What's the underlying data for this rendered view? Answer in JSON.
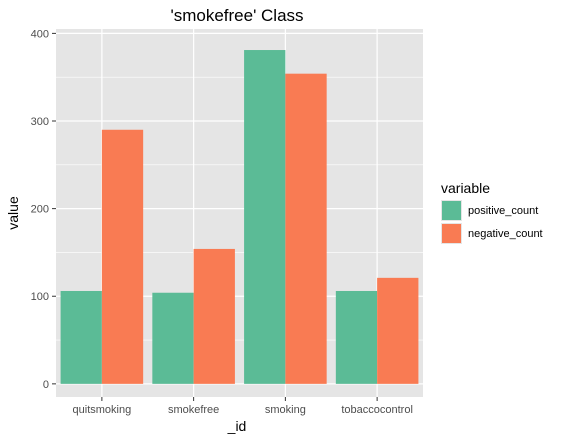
{
  "chart_data": {
    "type": "bar",
    "title": "'smokefree' Class",
    "xlabel": "_id",
    "ylabel": "value",
    "categories": [
      "quitsmoking",
      "smokefree",
      "smoking",
      "tobaccocontrol"
    ],
    "series": [
      {
        "name": "positive_count",
        "color": "#5bbb96",
        "values": [
          106,
          104,
          381,
          106
        ]
      },
      {
        "name": "negative_count",
        "color": "#f97b53",
        "values": [
          290,
          154,
          354,
          121
        ]
      }
    ],
    "ylim": [
      -15,
      405
    ],
    "yticks": [
      0,
      100,
      200,
      300,
      400
    ],
    "grid": true,
    "legend": {
      "title": "variable",
      "position": "right"
    },
    "panel_color": "#e5e5e5",
    "grid_color": "#ffffff"
  }
}
